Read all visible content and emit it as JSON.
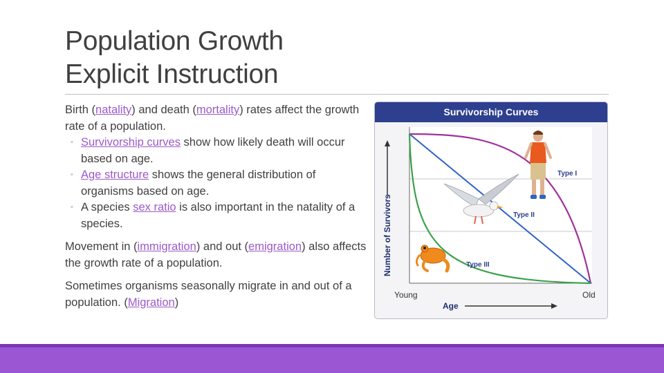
{
  "slide": {
    "title_line1": "Population Growth",
    "title_line2": "Explicit Instruction"
  },
  "content": {
    "p1_a": "Birth (",
    "p1_natality": "natality",
    "p1_b": ") and death (",
    "p1_mortality": "mortality",
    "p1_c": ") rates affect the growth rate of a population.",
    "bullets": [
      {
        "link": "Survivorship curves",
        "text": " show how likely death will occur based on age."
      },
      {
        "link": "Age structure",
        "text": " shows the general distribution of organisms based on age."
      },
      {
        "pre": "A species ",
        "link": "sex ratio",
        "text": " is also important in the natality of a species."
      }
    ],
    "bullet_mark": "◦",
    "p2_a": "Movement in (",
    "p2_immigration": "immigration",
    "p2_b": ") and out (",
    "p2_emigration": "emigration",
    "p2_c": ") also affects the growth rate of a population.",
    "p3_a": "Sometimes organisms seasonally migrate in and out of a population. (",
    "p3_migration": "Migration",
    "p3_b": ")"
  },
  "figure": {
    "title": "Survivorship Curves",
    "y_axis_label": "Number of Survivors",
    "x_axis_label": "Age",
    "x_start_label": "Young",
    "x_end_label": "Old",
    "type1_label": "Type I",
    "type2_label": "Type II",
    "type3_label": "Type III",
    "colors": {
      "header": "#2d3f8e",
      "type1": "#a0309a",
      "type2": "#2f63c6",
      "type3": "#3aa14a",
      "link": "#9b59c9",
      "footer": "#9b57d3"
    }
  }
}
